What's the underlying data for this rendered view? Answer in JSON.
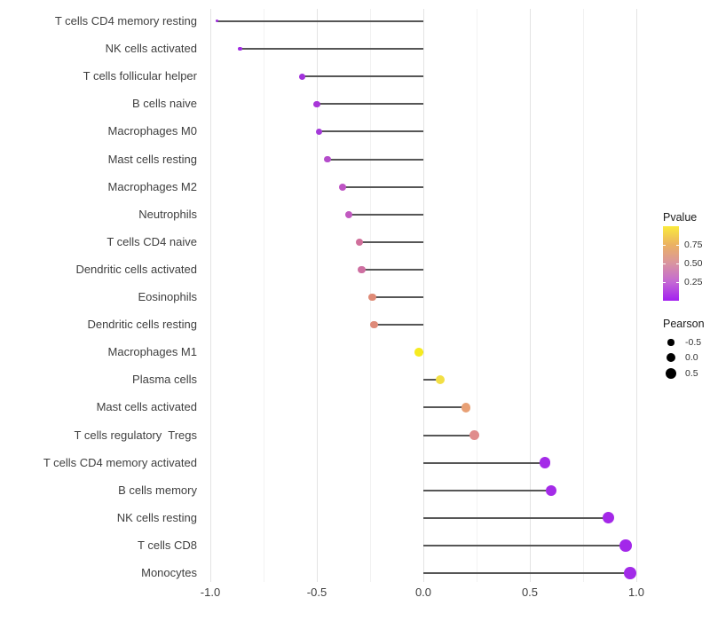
{
  "chart_data": {
    "type": "scatter",
    "variant": "horizontal-lollipop",
    "title": "",
    "xlabel": "",
    "ylabel": "",
    "grid": true,
    "xlim": [
      -1.04,
      1.12
    ],
    "x_ticks": [
      -1.0,
      -0.5,
      0.0,
      0.5,
      1.0
    ],
    "x_tick_labels": [
      "-1.0",
      "-0.5",
      "0.0",
      "0.5",
      "1.0"
    ],
    "x_minor_ticks": [
      -0.75,
      -0.25,
      0.25,
      0.75
    ],
    "categories": [
      "T cells CD4 memory resting",
      "NK cells activated",
      "T cells follicular helper",
      "B cells naive",
      "Macrophages M0",
      "Mast cells resting",
      "Macrophages M2",
      "Neutrophils",
      "T cells CD4 naive",
      "Dendritic cells activated",
      "Eosinophils",
      "Dendritic cells resting",
      "Macrophages M1",
      "Plasma cells",
      "Mast cells activated",
      "T cells regulatory  Tregs",
      "T cells CD4 memory activated",
      "B cells memory",
      "NK cells resting",
      "T cells CD8",
      "Monocytes"
    ],
    "series": [
      {
        "name": "Pearson",
        "values": [
          -0.97,
          -0.86,
          -0.57,
          -0.5,
          -0.49,
          -0.45,
          -0.38,
          -0.35,
          -0.3,
          -0.29,
          -0.24,
          -0.23,
          -0.02,
          0.08,
          0.2,
          0.24,
          0.57,
          0.6,
          0.87,
          0.95,
          0.97
        ]
      }
    ],
    "point_colors": [
      "#9F2BDF",
      "#A02BE2",
      "#A232DC",
      "#A836D8",
      "#A43BD9",
      "#B44CCB",
      "#BE53C4",
      "#C159C0",
      "#D06F9B",
      "#CE6FA1",
      "#DF8A76",
      "#DE8A79",
      "#F6EB20",
      "#F2DF45",
      "#E8A075",
      "#E08C8C",
      "#A42BE8",
      "#A42BE8",
      "#A428E8",
      "#A328EA",
      "#A22BE8"
    ],
    "legend": {
      "color": {
        "title": "Pvalue",
        "tick_labels": [
          "0.75",
          "0.50",
          "0.25"
        ],
        "tick_values": [
          0.75,
          0.5,
          0.25
        ],
        "range": [
          0,
          1
        ],
        "gradient_stops_top_to_bottom": [
          "#FAEA3B",
          "#EBB163",
          "#D994A0",
          "#C468D4",
          "#A320F0"
        ]
      },
      "size": {
        "title": "Pearson",
        "entry_labels": [
          "-0.5",
          "0.0",
          "0.5"
        ],
        "entry_values": [
          -0.5,
          0.0,
          0.5
        ],
        "dot_color": "#000000"
      }
    },
    "stick_color": "#565656",
    "baseline_value": 0
  }
}
